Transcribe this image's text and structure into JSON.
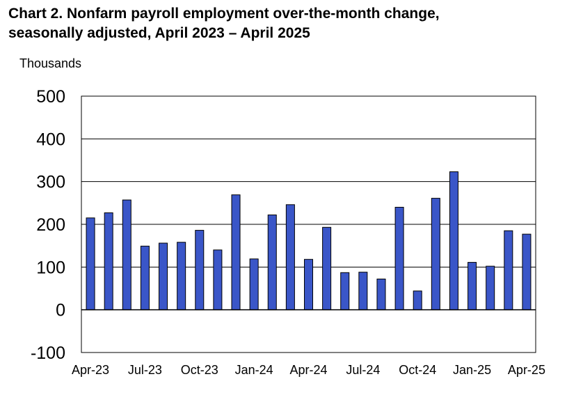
{
  "chart_data": {
    "type": "bar",
    "title_lines": [
      "Chart 2. Nonfarm payroll employment over-the-month change,",
      "seasonally adjusted, April 2023 – April 2025"
    ],
    "ylabel": "Thousands",
    "xlabel": "",
    "ylim": [
      -100,
      500
    ],
    "yticks": [
      500,
      400,
      300,
      200,
      100,
      0,
      -100
    ],
    "grid": true,
    "legend": "none",
    "bar_color": "#3a56c8",
    "categories": [
      "Apr-23",
      "May-23",
      "Jun-23",
      "Jul-23",
      "Aug-23",
      "Sep-23",
      "Oct-23",
      "Nov-23",
      "Dec-23",
      "Jan-24",
      "Feb-24",
      "Mar-24",
      "Apr-24",
      "May-24",
      "Jun-24",
      "Jul-24",
      "Aug-24",
      "Sep-24",
      "Oct-24",
      "Nov-24",
      "Dec-24",
      "Jan-25",
      "Feb-25",
      "Mar-25",
      "Apr-25"
    ],
    "values": [
      215,
      227,
      257,
      149,
      156,
      158,
      186,
      140,
      269,
      119,
      222,
      246,
      118,
      193,
      87,
      88,
      72,
      240,
      44,
      261,
      323,
      111,
      102,
      185,
      177
    ],
    "x_tick_labels": [
      "Apr-23",
      "Jul-23",
      "Oct-23",
      "Jan-24",
      "Apr-24",
      "Jul-24",
      "Oct-24",
      "Jan-25",
      "Apr-25"
    ],
    "x_tick_indices": [
      0,
      3,
      6,
      9,
      12,
      15,
      18,
      21,
      24
    ]
  }
}
